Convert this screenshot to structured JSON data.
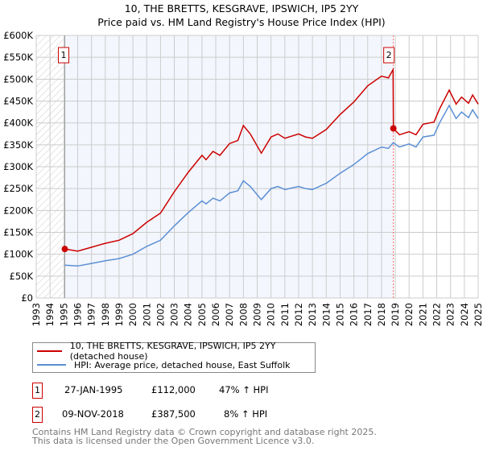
{
  "title": "10, THE BRETTS, KESGRAVE, IPSWICH, IP5 2YY",
  "subtitle": "Price paid vs. HM Land Registry's House Price Index (HPI)",
  "chart_data": {
    "type": "line",
    "title": "10, THE BRETTS, KESGRAVE, IPSWICH, IP5 2YY",
    "subtitle": "Price paid vs. HM Land Registry's House Price Index (HPI)",
    "xlim": [
      1993,
      2025
    ],
    "ylim": [
      0,
      600000
    ],
    "x_ticks": [
      "1993",
      "1994",
      "1995",
      "1996",
      "1997",
      "1998",
      "1999",
      "2000",
      "2001",
      "2002",
      "2003",
      "2004",
      "2005",
      "2006",
      "2007",
      "2008",
      "2009",
      "2010",
      "2011",
      "2012",
      "2013",
      "2014",
      "2015",
      "2016",
      "2017",
      "2018",
      "2019",
      "2020",
      "2021",
      "2022",
      "2023",
      "2024",
      "2025"
    ],
    "y_ticks": [
      {
        "v": 0,
        "label": "£0"
      },
      {
        "v": 50000,
        "label": "£50K"
      },
      {
        "v": 100000,
        "label": "£100K"
      },
      {
        "v": 150000,
        "label": "£150K"
      },
      {
        "v": 200000,
        "label": "£200K"
      },
      {
        "v": 250000,
        "label": "£250K"
      },
      {
        "v": 300000,
        "label": "£300K"
      },
      {
        "v": 350000,
        "label": "£350K"
      },
      {
        "v": 400000,
        "label": "£400K"
      },
      {
        "v": 450000,
        "label": "£450K"
      },
      {
        "v": 500000,
        "label": "£500K"
      },
      {
        "v": 550000,
        "label": "£550K"
      },
      {
        "v": 600000,
        "label": "£600K"
      }
    ],
    "grid": true,
    "series": [
      {
        "name": "10, THE BRETTS, KESGRAVE, IPSWICH, IP5 2YY (detached house)",
        "color": "#cc0000",
        "x": [
          1995.07,
          1996,
          1997,
          1998,
          1999,
          2000,
          2001,
          2002,
          2003,
          2004,
          2005,
          2005.3,
          2005.8,
          2006.3,
          2007,
          2007.6,
          2008,
          2008.5,
          2009.3,
          2010,
          2010.5,
          2011,
          2012,
          2012.5,
          2013,
          2013.5,
          2014,
          2015,
          2016,
          2017,
          2018,
          2018.5,
          2018.84,
          2018.86,
          2019.3,
          2020,
          2020.5,
          2021,
          2021.8,
          2022.2,
          2022.9,
          2023.4,
          2023.8,
          2024.3,
          2024.6,
          2025
        ],
        "y": [
          112000,
          107000,
          116000,
          125000,
          132000,
          147000,
          173000,
          194000,
          243000,
          287000,
          326000,
          316000,
          335000,
          326000,
          353000,
          360000,
          394000,
          375000,
          331000,
          368000,
          375000,
          365000,
          375000,
          368000,
          365000,
          375000,
          385000,
          419000,
          448000,
          485000,
          507000,
          503000,
          522000,
          387500,
          373000,
          380000,
          373000,
          397000,
          402000,
          432000,
          475000,
          443000,
          459000,
          445000,
          464000,
          443000
        ]
      },
      {
        "name": "HPI: Average price, detached house, East Suffolk",
        "color": "#5b8fd4",
        "x": [
          1995.07,
          1996,
          1997,
          1998,
          1999,
          2000,
          2001,
          2002,
          2003,
          2004,
          2005,
          2005.3,
          2005.8,
          2006.3,
          2007,
          2007.6,
          2008,
          2008.5,
          2009.3,
          2010,
          2010.5,
          2011,
          2012,
          2012.5,
          2013,
          2013.5,
          2014,
          2015,
          2016,
          2017,
          2018,
          2018.5,
          2018.85,
          2019.3,
          2020,
          2020.5,
          2021,
          2021.8,
          2022.2,
          2022.9,
          2023.4,
          2023.8,
          2024.3,
          2024.6,
          2025
        ],
        "y": [
          75000,
          73000,
          79000,
          85000,
          90000,
          100000,
          118000,
          132000,
          165000,
          195000,
          222000,
          215000,
          228000,
          222000,
          240000,
          245000,
          268000,
          255000,
          225000,
          250000,
          255000,
          248000,
          255000,
          250000,
          248000,
          255000,
          262000,
          285000,
          305000,
          330000,
          345000,
          342000,
          355000,
          345000,
          352000,
          345000,
          368000,
          372000,
          400000,
          440000,
          410000,
          425000,
          412000,
          430000,
          410000
        ]
      }
    ],
    "annotations": [
      {
        "label": "1",
        "x": 1995.07,
        "y": 112000
      },
      {
        "label": "2",
        "x": 2018.86,
        "y": 387500
      }
    ],
    "legend": "bottom"
  },
  "legend": {
    "items": [
      "10, THE BRETTS, KESGRAVE, IPSWICH, IP5 2YY (detached house)",
      "HPI: Average price, detached house, East Suffolk"
    ]
  },
  "transactions": [
    {
      "num": "1",
      "date": "27-JAN-1995",
      "price": "£112,000",
      "hpi": "47% ↑ HPI"
    },
    {
      "num": "2",
      "date": "09-NOV-2018",
      "price": "£387,500",
      "hpi": "8% ↑ HPI"
    }
  ],
  "footer": [
    "Contains HM Land Registry data © Crown copyright and database right 2025.",
    "This data is licensed under the Open Government Licence v3.0."
  ]
}
